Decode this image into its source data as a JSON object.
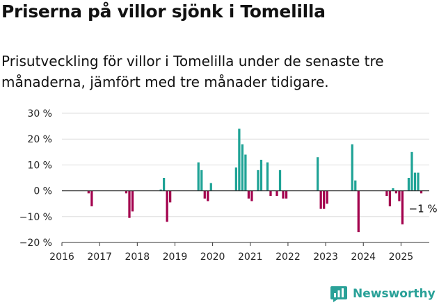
{
  "header": {
    "title": "Priserna på villor sjönk i Tomelilla",
    "subtitle": "Prisutveckling för villor i Tomelilla under de senaste tre månaderna, jämfört med tre månader tidigare."
  },
  "brand": {
    "name": "Newsworthy"
  },
  "colors": {
    "positive": "#1fa396",
    "negative": "#a3004d",
    "axis": "#333333",
    "grid": "#dddddd",
    "brand": "#2aa198"
  },
  "chart_data": {
    "type": "bar",
    "x_start": 2016.0,
    "step": 0.0833,
    "ylim": [
      -20,
      30
    ],
    "xlim": [
      2016.0,
      2025.75
    ],
    "y_ticks": [
      30,
      20,
      10,
      0,
      -10,
      -20
    ],
    "y_tick_labels": [
      "30 %",
      "20 %",
      "10 %",
      "0 %",
      "−10 %",
      "−20 %"
    ],
    "x_ticks": [
      2016,
      2017,
      2018,
      2019,
      2020,
      2021,
      2022,
      2023,
      2024,
      2025
    ],
    "x_tick_labels": [
      "2016",
      "2017",
      "2018",
      "2019",
      "2020",
      "2021",
      "2022",
      "2023",
      "2024",
      "2025"
    ],
    "grid": "horizontal",
    "values": [
      0,
      0,
      0,
      0,
      0,
      0,
      0,
      0,
      -1,
      -6,
      0,
      0,
      0,
      0,
      0,
      0,
      0,
      0,
      0,
      0,
      -1,
      -10.5,
      -8,
      0,
      0,
      0,
      0,
      0,
      0,
      0,
      0,
      0.5,
      5,
      -12,
      -4.5,
      0,
      0,
      0,
      0,
      0,
      0,
      0,
      0,
      11,
      8,
      -3,
      -4,
      3,
      0,
      0,
      0,
      0,
      0,
      0,
      0,
      9,
      24,
      18,
      14,
      -3,
      -4,
      0,
      8,
      12,
      0,
      11,
      -2,
      0,
      -2,
      8,
      -3,
      -3,
      0,
      0,
      0,
      0,
      0,
      0,
      0,
      0,
      0,
      13,
      -7,
      -7,
      -5,
      0,
      0,
      0,
      0,
      0,
      0,
      0,
      18,
      4,
      -16,
      0,
      0,
      0,
      0,
      0,
      0,
      0,
      0,
      -2,
      -6,
      1,
      -1,
      -4,
      -13,
      0,
      5,
      15,
      7,
      7,
      -1
    ],
    "annotation": {
      "text": "−1 %"
    }
  }
}
